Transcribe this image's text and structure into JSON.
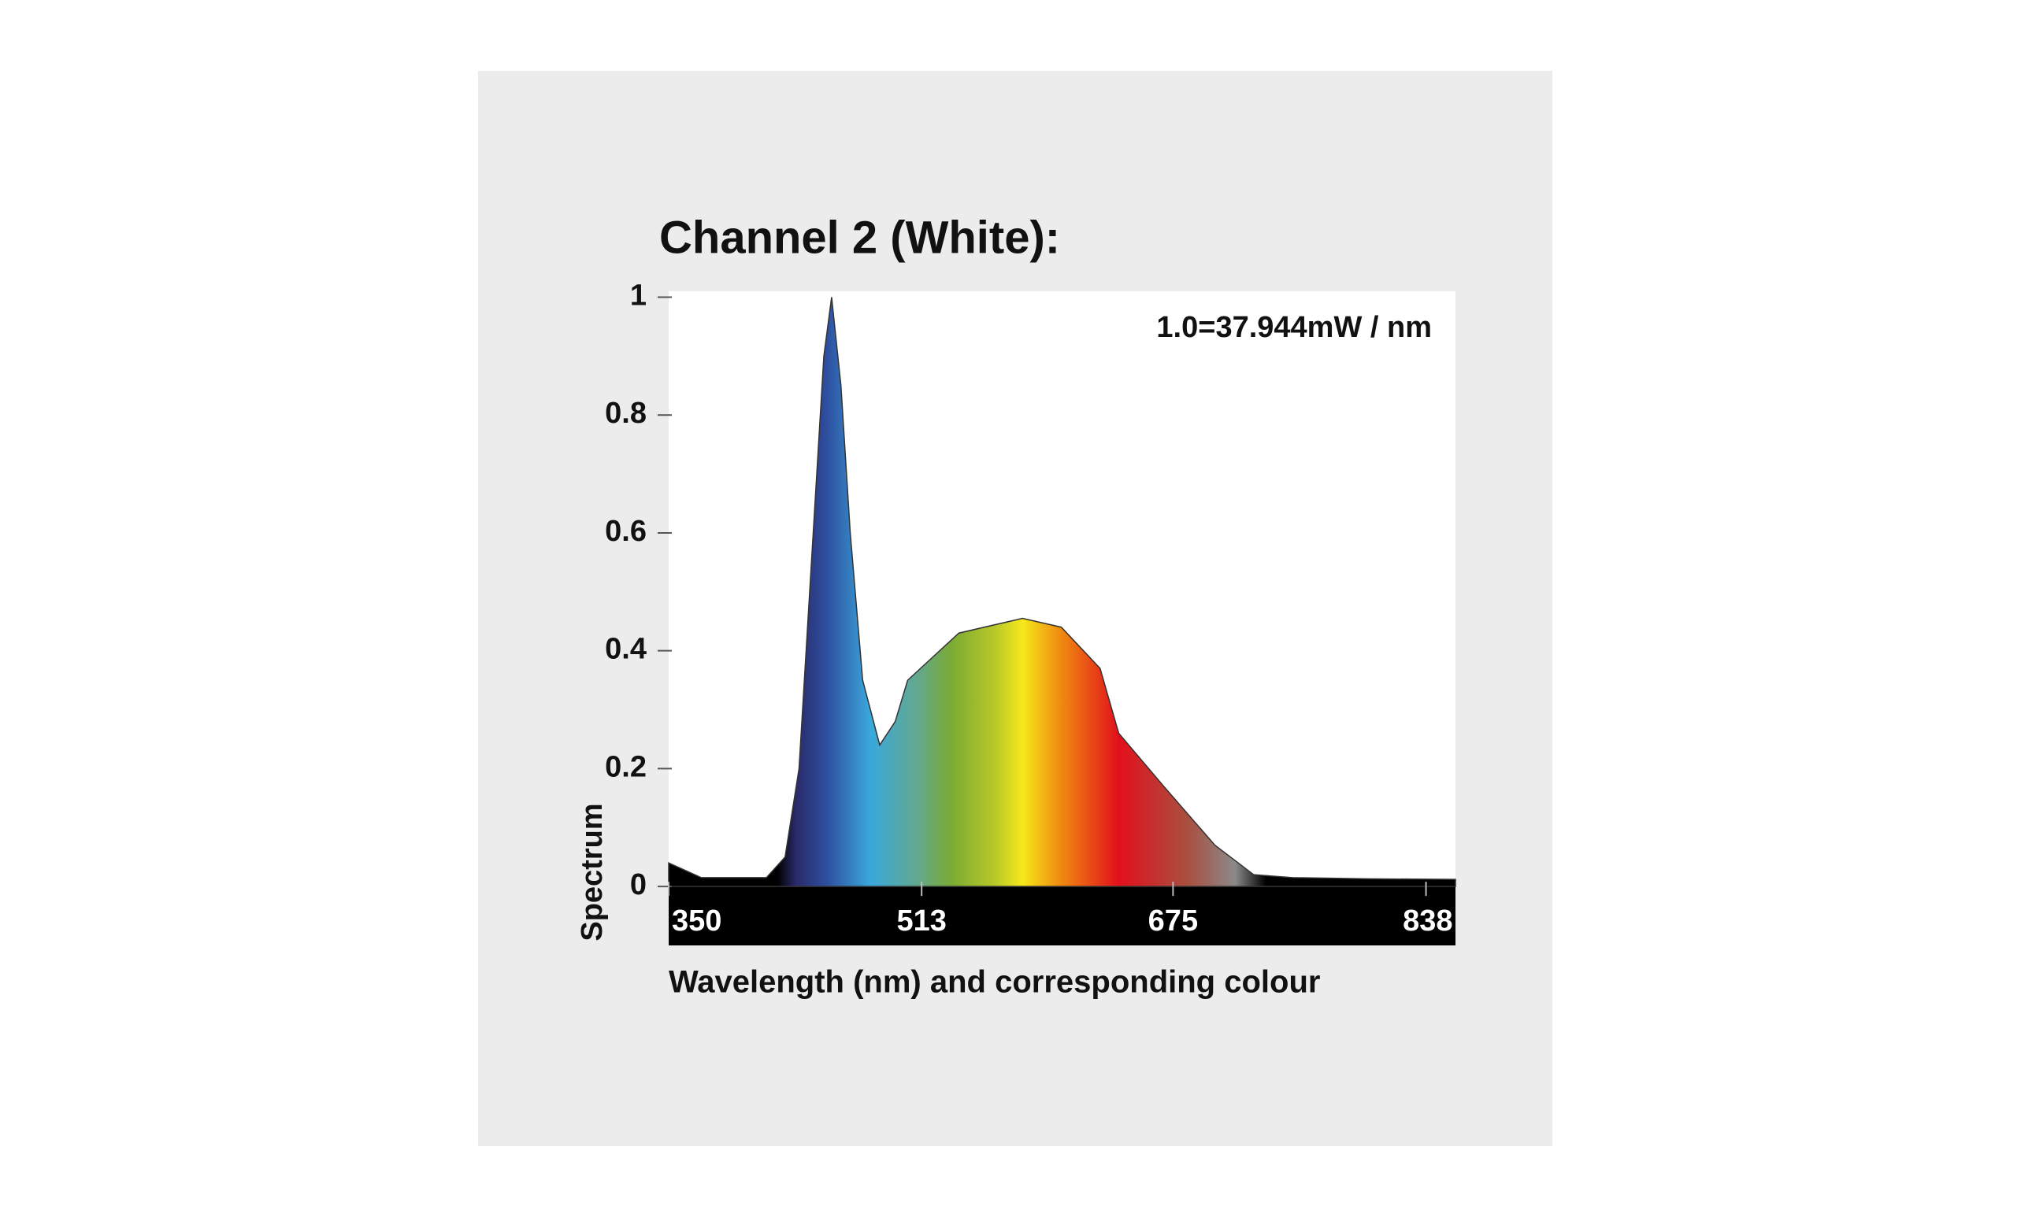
{
  "chart_data": {
    "type": "area",
    "title": "Channel 2 (White):",
    "annotation": "1.0=37.944mW / nm",
    "x_label": "Wavelength (nm) and corresponding colour",
    "y_label": "Spectrum",
    "x": [
      350,
      371,
      413,
      425,
      434,
      442,
      450,
      455,
      461,
      467,
      475,
      486,
      496,
      504,
      537,
      578,
      603,
      628,
      640,
      669,
      702,
      727,
      752,
      800,
      857
    ],
    "values": [
      0.04,
      0.015,
      0.015,
      0.05,
      0.2,
      0.55,
      0.9,
      1.0,
      0.85,
      0.6,
      0.35,
      0.24,
      0.28,
      0.35,
      0.43,
      0.455,
      0.44,
      0.37,
      0.26,
      0.17,
      0.07,
      0.02,
      0.015,
      0.013,
      0.012
    ],
    "fill_gradient": [
      [
        420,
        "#000000"
      ],
      [
        432,
        "#2a2a6a"
      ],
      [
        452,
        "#2e4fa0"
      ],
      [
        480,
        "#3aa8dc"
      ],
      [
        510,
        "#62a88e"
      ],
      [
        532,
        "#7aab34"
      ],
      [
        560,
        "#b8c828"
      ],
      [
        578,
        "#f6e81a"
      ],
      [
        602,
        "#f08c10"
      ],
      [
        640,
        "#e2101c"
      ],
      [
        685,
        "#a85040"
      ],
      [
        715,
        "#8a8a8a"
      ],
      [
        735,
        "#000000"
      ]
    ],
    "xlim": [
      350,
      857
    ],
    "ylim": [
      -0.1,
      1.01
    ],
    "xticks": [
      350,
      513,
      675,
      838
    ],
    "yticks": [
      0,
      0.2,
      0.4,
      0.6,
      0.8,
      1
    ]
  }
}
